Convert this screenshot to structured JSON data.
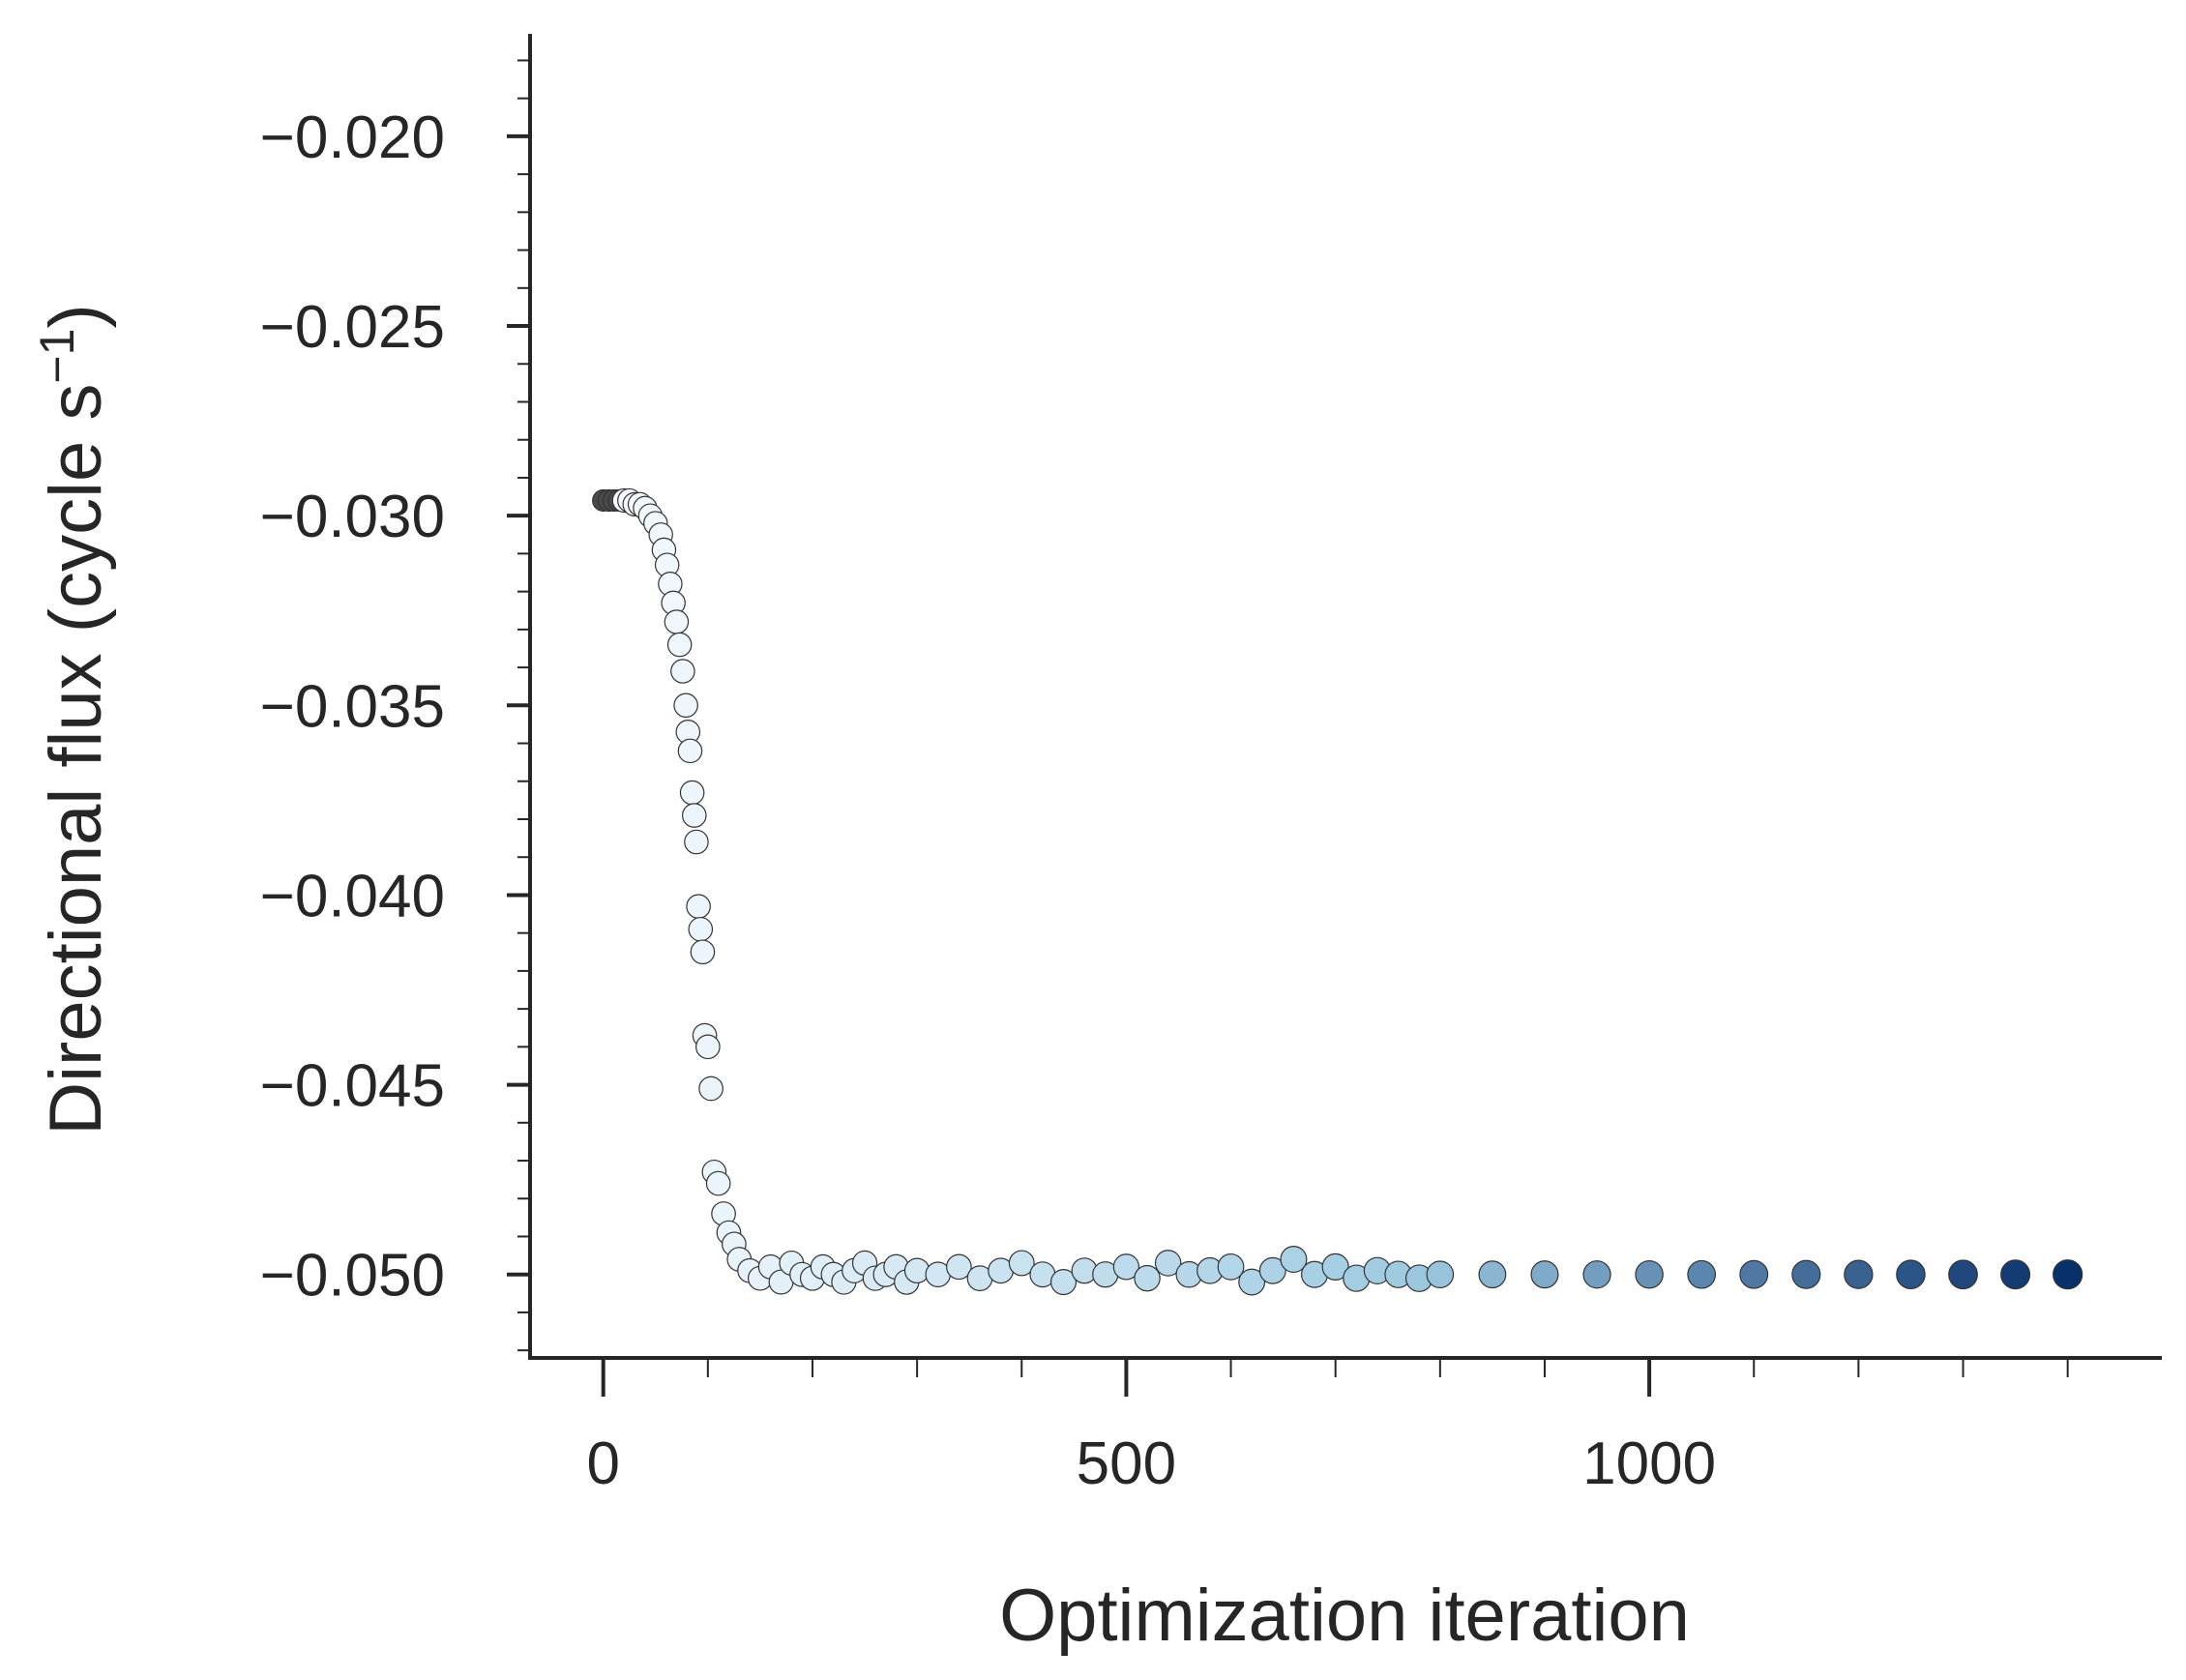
{
  "chart_data": {
    "type": "scatter",
    "xlabel": "Optimization iteration",
    "ylabel": "Directional flux (cycle s",
    "ylabel_sup": "−1",
    "ylabel_close": ")",
    "xlim": [
      -70,
      1490
    ],
    "ylim": [
      -0.0522,
      -0.0173
    ],
    "x_major_ticks": [
      0,
      500,
      1000
    ],
    "x_minor_step": 100,
    "y_major_ticks": [
      -0.05,
      -0.045,
      -0.04,
      -0.035,
      -0.03,
      -0.025,
      -0.02
    ],
    "y_minor_step": 0.001,
    "x_tick_labels": [
      "0",
      "500",
      "1000"
    ],
    "y_tick_labels": [
      "−0.050",
      "−0.045",
      "−0.040",
      "−0.035",
      "−0.030",
      "−0.025",
      "−0.020"
    ],
    "colormap": "Blues",
    "colors": {
      "start": "#f7fbff",
      "mid": "#9ecae1",
      "end": "#08306b",
      "edge": "#333333",
      "axis": "#262626"
    },
    "grid": false,
    "legend": "none",
    "series": [
      {
        "x": [
          0,
          5,
          10,
          15,
          20,
          25,
          30,
          35,
          40,
          45,
          50,
          55,
          58,
          61,
          64,
          67,
          70,
          73,
          76,
          79,
          81,
          83,
          85,
          87,
          89,
          91,
          93,
          95,
          97,
          100,
          103,
          106,
          110,
          115,
          120,
          125,
          130,
          140,
          150,
          160,
          170,
          180,
          190,
          200,
          210,
          220,
          230,
          240,
          250,
          260,
          270,
          280,
          290,
          300,
          320,
          340,
          360,
          380,
          400,
          420,
          440,
          460,
          480,
          500,
          520,
          540,
          560,
          580,
          600,
          620,
          640,
          660,
          680,
          700,
          720,
          740,
          760,
          780,
          800,
          850,
          900,
          950,
          1000,
          1050,
          1100,
          1150,
          1200,
          1250,
          1300,
          1350,
          1400
        ],
        "y": [
          -0.0296,
          -0.0296,
          -0.0296,
          -0.0296,
          -0.0296,
          -0.0296,
          -0.0297,
          -0.0297,
          -0.0298,
          -0.03,
          -0.0302,
          -0.0305,
          -0.0309,
          -0.0313,
          -0.0318,
          -0.0323,
          -0.0328,
          -0.0334,
          -0.0341,
          -0.035,
          -0.0357,
          -0.0362,
          -0.0373,
          -0.0379,
          -0.0386,
          -0.0403,
          -0.0409,
          -0.0415,
          -0.0437,
          -0.044,
          -0.0451,
          -0.0473,
          -0.0476,
          -0.0484,
          -0.0489,
          -0.0492,
          -0.0496,
          -0.0499,
          -0.0501,
          -0.0498,
          -0.0502,
          -0.0497,
          -0.05,
          -0.0501,
          -0.0498,
          -0.05,
          -0.0502,
          -0.0499,
          -0.0497,
          -0.0501,
          -0.05,
          -0.0498,
          -0.0502,
          -0.0499,
          -0.05,
          -0.0498,
          -0.0501,
          -0.0499,
          -0.0497,
          -0.05,
          -0.0502,
          -0.0499,
          -0.05,
          -0.0498,
          -0.0501,
          -0.0497,
          -0.05,
          -0.0499,
          -0.0498,
          -0.0502,
          -0.0499,
          -0.0496,
          -0.05,
          -0.0498,
          -0.0501,
          -0.0499,
          -0.05,
          -0.0501,
          -0.05,
          -0.05,
          -0.05,
          -0.05,
          -0.05,
          -0.05,
          -0.05,
          -0.05,
          -0.05,
          -0.05,
          -0.05,
          -0.05,
          -0.05
        ]
      }
    ]
  }
}
